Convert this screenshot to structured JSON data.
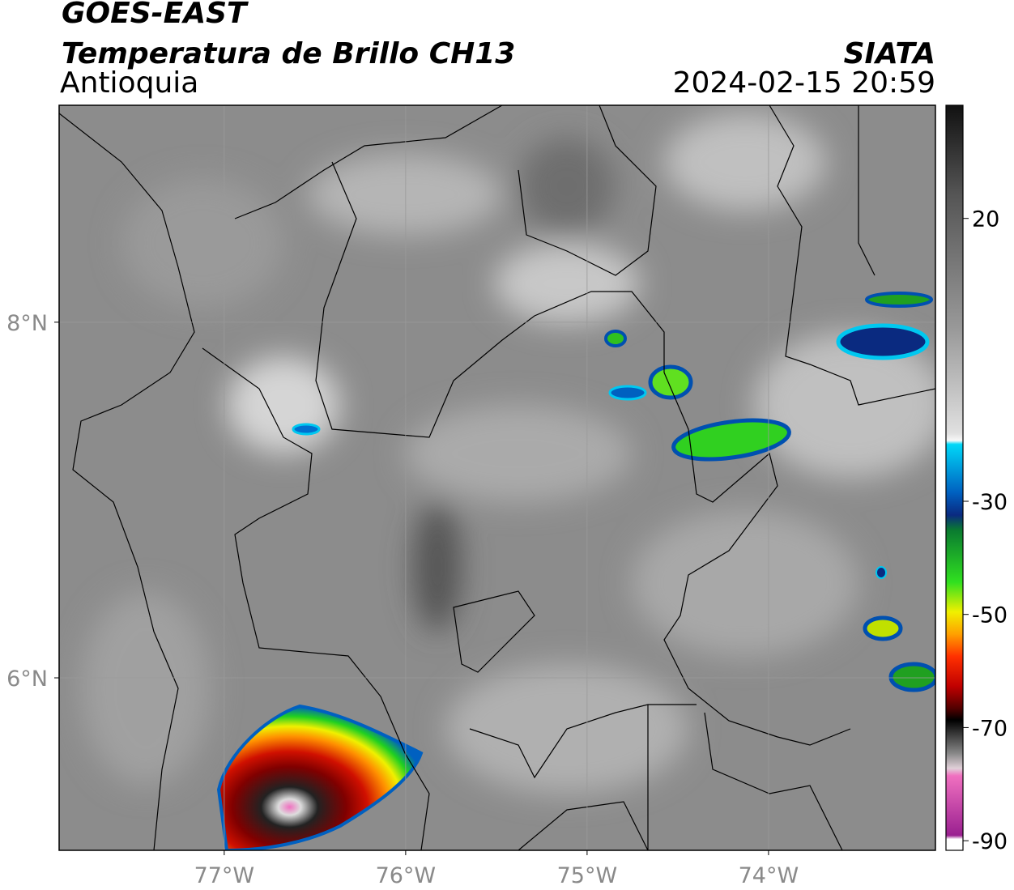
{
  "header": {
    "satellite": "GOES-EAST",
    "product": "Temperatura de Brillo CH13",
    "region": "Antioquia",
    "agency": "SIATA",
    "datetime": "2024-02-15 20:59"
  },
  "map": {
    "xlim": [
      -77.91,
      -73.08
    ],
    "ylim": [
      5.03,
      9.22
    ],
    "xticks": [
      {
        "value": -77,
        "label": "77°W"
      },
      {
        "value": -76,
        "label": "76°W"
      },
      {
        "value": -75,
        "label": "75°W"
      },
      {
        "value": -74,
        "label": "74°W"
      }
    ],
    "yticks": [
      {
        "value": 8,
        "label": "8°N"
      },
      {
        "value": 6,
        "label": "6°N"
      }
    ],
    "grid": true
  },
  "colorbar": {
    "lim": [
      -91.7,
      40
    ],
    "ticks": [
      20,
      -30,
      -50,
      -70,
      -90
    ]
  }
}
